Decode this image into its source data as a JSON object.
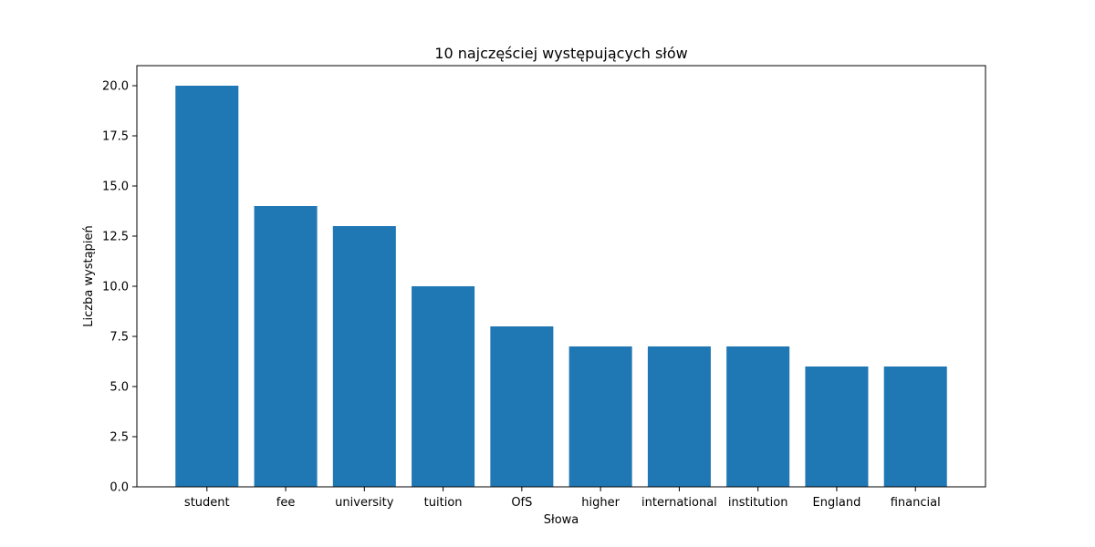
{
  "chart_data": {
    "type": "bar",
    "title": "10 najczęściej występujących słów",
    "xlabel": "Słowa",
    "ylabel": "Liczba wystąpień",
    "categories": [
      "student",
      "fee",
      "university",
      "tuition",
      "OfS",
      "higher",
      "international",
      "institution",
      "England",
      "financial"
    ],
    "values": [
      20,
      14,
      13,
      10,
      8,
      7,
      7,
      7,
      6,
      6
    ],
    "ylim": [
      0,
      21
    ],
    "yticks": [
      "0.0",
      "2.5",
      "5.0",
      "7.5",
      "10.0",
      "12.5",
      "15.0",
      "17.5",
      "20.0"
    ],
    "bar_color": "#1f77b4",
    "grid": false,
    "legend": "none"
  }
}
